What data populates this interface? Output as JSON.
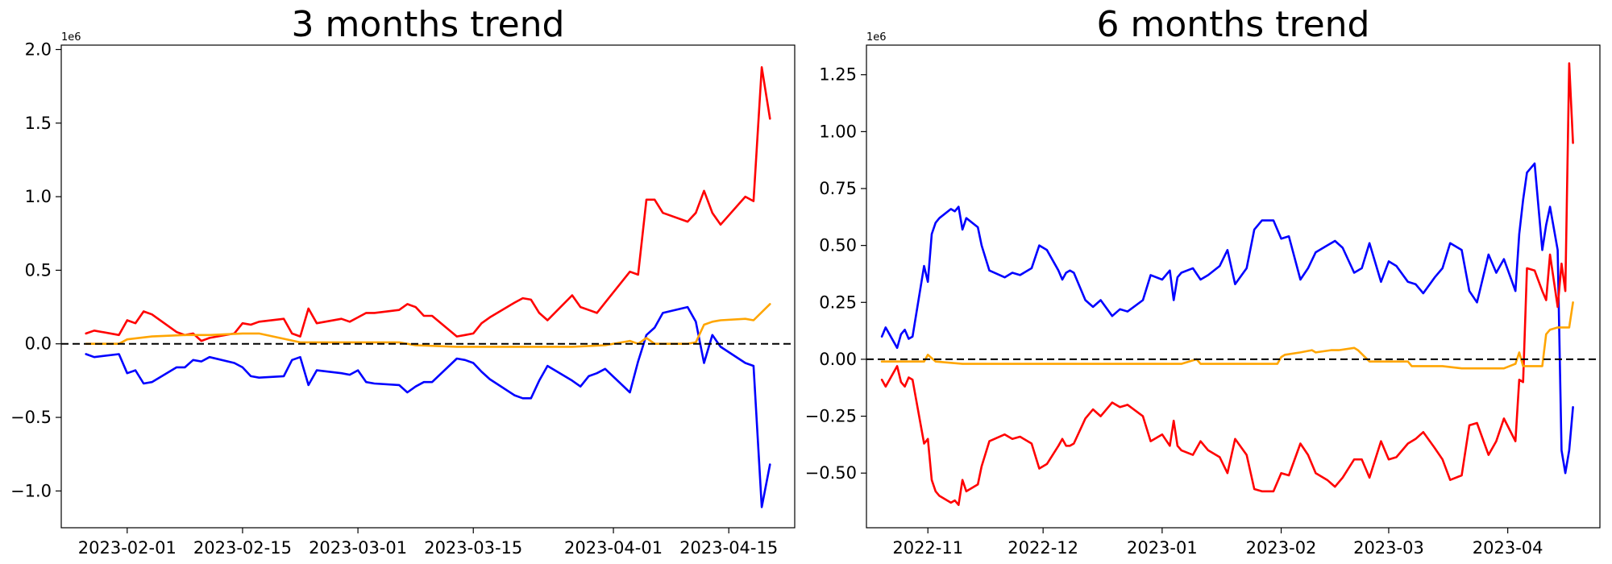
{
  "chart_data": [
    {
      "type": "line",
      "title": "3 months trend",
      "xlabel": "",
      "ylabel": "",
      "y_multiplier": "1e6",
      "xlim": [
        "2023-01-24",
        "2023-04-23"
      ],
      "ylim": [
        -1.25,
        2.03
      ],
      "x_ticks": [
        "2023-02-01",
        "2023-02-15",
        "2023-03-01",
        "2023-03-15",
        "2023-04-01",
        "2023-04-15"
      ],
      "y_ticks": [
        "−1.0",
        "−0.5",
        "0.0",
        "0.5",
        "1.0",
        "1.5",
        "2.0"
      ],
      "y_tick_values": [
        -1.0,
        -0.5,
        0.0,
        0.5,
        1.0,
        1.5,
        2.0
      ],
      "reference_line": {
        "y": 0,
        "style": "dashed",
        "color": "#000000"
      },
      "grid": false,
      "series": [
        {
          "color": "#ff0000",
          "x": [
            "2023-01-27",
            "2023-01-28",
            "2023-01-31",
            "2023-02-01",
            "2023-02-02",
            "2023-02-03",
            "2023-02-04",
            "2023-02-07",
            "2023-02-08",
            "2023-02-09",
            "2023-02-10",
            "2023-02-11",
            "2023-02-14",
            "2023-02-15",
            "2023-02-16",
            "2023-02-17",
            "2023-02-20",
            "2023-02-21",
            "2023-02-22",
            "2023-02-23",
            "2023-02-24",
            "2023-02-27",
            "2023-02-28",
            "2023-03-01",
            "2023-03-02",
            "2023-03-03",
            "2023-03-06",
            "2023-03-07",
            "2023-03-08",
            "2023-03-09",
            "2023-03-10",
            "2023-03-13",
            "2023-03-14",
            "2023-03-15",
            "2023-03-16",
            "2023-03-17",
            "2023-03-20",
            "2023-03-21",
            "2023-03-22",
            "2023-03-23",
            "2023-03-24",
            "2023-03-27",
            "2023-03-28",
            "2023-03-29",
            "2023-03-30",
            "2023-03-31",
            "2023-04-03",
            "2023-04-04",
            "2023-04-05",
            "2023-04-06",
            "2023-04-07",
            "2023-04-10",
            "2023-04-11",
            "2023-04-12",
            "2023-04-13",
            "2023-04-14",
            "2023-04-17",
            "2023-04-18",
            "2023-04-19",
            "2023-04-20"
          ],
          "values": [
            0.07,
            0.09,
            0.06,
            0.16,
            0.14,
            0.22,
            0.2,
            0.08,
            0.06,
            0.07,
            0.02,
            0.04,
            0.07,
            0.14,
            0.13,
            0.15,
            0.17,
            0.07,
            0.05,
            0.24,
            0.14,
            0.17,
            0.15,
            0.18,
            0.21,
            0.21,
            0.23,
            0.27,
            0.25,
            0.19,
            0.19,
            0.05,
            0.06,
            0.07,
            0.14,
            0.18,
            0.28,
            0.31,
            0.3,
            0.21,
            0.16,
            0.33,
            0.25,
            0.23,
            0.21,
            0.28,
            0.49,
            0.47,
            0.98,
            0.98,
            0.89,
            0.83,
            0.89,
            1.04,
            0.89,
            0.81,
            1.0,
            0.97,
            1.88,
            1.53
          ]
        },
        {
          "color": "#0000ff",
          "x": [
            "2023-01-27",
            "2023-01-28",
            "2023-01-31",
            "2023-02-01",
            "2023-02-02",
            "2023-02-03",
            "2023-02-04",
            "2023-02-07",
            "2023-02-08",
            "2023-02-09",
            "2023-02-10",
            "2023-02-11",
            "2023-02-14",
            "2023-02-15",
            "2023-02-16",
            "2023-02-17",
            "2023-02-20",
            "2023-02-21",
            "2023-02-22",
            "2023-02-23",
            "2023-02-24",
            "2023-02-27",
            "2023-02-28",
            "2023-03-01",
            "2023-03-02",
            "2023-03-03",
            "2023-03-06",
            "2023-03-07",
            "2023-03-08",
            "2023-03-09",
            "2023-03-10",
            "2023-03-13",
            "2023-03-14",
            "2023-03-15",
            "2023-03-16",
            "2023-03-17",
            "2023-03-20",
            "2023-03-21",
            "2023-03-22",
            "2023-03-23",
            "2023-03-24",
            "2023-03-27",
            "2023-03-28",
            "2023-03-29",
            "2023-03-30",
            "2023-03-31",
            "2023-04-03",
            "2023-04-04",
            "2023-04-05",
            "2023-04-06",
            "2023-04-07",
            "2023-04-10",
            "2023-04-11",
            "2023-04-12",
            "2023-04-13",
            "2023-04-14",
            "2023-04-17",
            "2023-04-18",
            "2023-04-19",
            "2023-04-20"
          ],
          "values": [
            -0.07,
            -0.09,
            -0.07,
            -0.2,
            -0.18,
            -0.27,
            -0.26,
            -0.16,
            -0.16,
            -0.11,
            -0.12,
            -0.09,
            -0.13,
            -0.16,
            -0.22,
            -0.23,
            -0.22,
            -0.11,
            -0.09,
            -0.28,
            -0.18,
            -0.2,
            -0.21,
            -0.18,
            -0.26,
            -0.27,
            -0.28,
            -0.33,
            -0.29,
            -0.26,
            -0.26,
            -0.1,
            -0.11,
            -0.13,
            -0.19,
            -0.24,
            -0.35,
            -0.37,
            -0.37,
            -0.25,
            -0.15,
            -0.25,
            -0.29,
            -0.22,
            -0.2,
            -0.17,
            -0.33,
            -0.12,
            0.06,
            0.11,
            0.21,
            0.25,
            0.15,
            -0.13,
            0.06,
            -0.02,
            -0.13,
            -0.15,
            -1.11,
            -0.82
          ]
        },
        {
          "color": "#ffa500",
          "x": [
            "2023-01-27",
            "2023-01-31",
            "2023-02-01",
            "2023-02-04",
            "2023-02-08",
            "2023-02-11",
            "2023-02-15",
            "2023-02-17",
            "2023-02-22",
            "2023-02-28",
            "2023-03-06",
            "2023-03-08",
            "2023-03-13",
            "2023-03-20",
            "2023-03-27",
            "2023-03-31",
            "2023-04-03",
            "2023-04-04",
            "2023-04-05",
            "2023-04-06",
            "2023-04-10",
            "2023-04-11",
            "2023-04-12",
            "2023-04-13",
            "2023-04-14",
            "2023-04-17",
            "2023-04-18",
            "2023-04-20"
          ],
          "values": [
            0.0,
            0.0,
            0.03,
            0.05,
            0.06,
            0.06,
            0.07,
            0.07,
            0.01,
            0.01,
            0.01,
            -0.01,
            -0.02,
            -0.02,
            -0.02,
            -0.01,
            0.02,
            0.0,
            0.04,
            0.0,
            0.0,
            0.01,
            0.13,
            0.15,
            0.16,
            0.17,
            0.16,
            0.27
          ]
        }
      ]
    },
    {
      "type": "line",
      "title": "6 months trend",
      "xlabel": "",
      "ylabel": "",
      "y_multiplier": "1e6",
      "xlim": [
        "2022-10-16",
        "2023-04-25"
      ],
      "ylim": [
        -0.74,
        1.38
      ],
      "x_ticks": [
        "2022-11",
        "2022-12",
        "2023-01",
        "2023-02",
        "2023-03",
        "2023-04"
      ],
      "x_tick_dates": [
        "2022-11-01",
        "2022-12-01",
        "2023-01-01",
        "2023-02-01",
        "2023-03-01",
        "2023-04-01"
      ],
      "y_ticks": [
        "−0.50",
        "−0.25",
        "0.00",
        "0.25",
        "0.50",
        "0.75",
        "1.00",
        "1.25"
      ],
      "y_tick_values": [
        -0.5,
        -0.25,
        0.0,
        0.25,
        0.5,
        0.75,
        1.0,
        1.25
      ],
      "reference_line": {
        "y": 0,
        "style": "dashed",
        "color": "#000000"
      },
      "grid": false,
      "series": [
        {
          "color": "#0000ff",
          "x": [
            "2022-10-20",
            "2022-10-21",
            "2022-10-24",
            "2022-10-25",
            "2022-10-26",
            "2022-10-27",
            "2022-10-28",
            "2022-10-31",
            "2022-11-01",
            "2022-11-02",
            "2022-11-03",
            "2022-11-04",
            "2022-11-07",
            "2022-11-08",
            "2022-11-09",
            "2022-11-10",
            "2022-11-11",
            "2022-11-14",
            "2022-11-15",
            "2022-11-17",
            "2022-11-21",
            "2022-11-23",
            "2022-11-25",
            "2022-11-28",
            "2022-11-30",
            "2022-12-02",
            "2022-12-05",
            "2022-12-06",
            "2022-12-07",
            "2022-12-08",
            "2022-12-09",
            "2022-12-12",
            "2022-12-14",
            "2022-12-16",
            "2022-12-19",
            "2022-12-21",
            "2022-12-23",
            "2022-12-27",
            "2022-12-29",
            "2023-01-01",
            "2023-01-03",
            "2023-01-04",
            "2023-01-05",
            "2023-01-06",
            "2023-01-09",
            "2023-01-11",
            "2023-01-13",
            "2023-01-16",
            "2023-01-18",
            "2023-01-20",
            "2023-01-23",
            "2023-01-25",
            "2023-01-27",
            "2023-01-30",
            "2023-02-01",
            "2023-02-03",
            "2023-02-06",
            "2023-02-08",
            "2023-02-10",
            "2023-02-13",
            "2023-02-15",
            "2023-02-17",
            "2023-02-20",
            "2023-02-22",
            "2023-02-24",
            "2023-02-27",
            "2023-03-01",
            "2023-03-03",
            "2023-03-06",
            "2023-03-08",
            "2023-03-10",
            "2023-03-13",
            "2023-03-15",
            "2023-03-17",
            "2023-03-20",
            "2023-03-22",
            "2023-03-24",
            "2023-03-27",
            "2023-03-29",
            "2023-03-31",
            "2023-04-03",
            "2023-04-04",
            "2023-04-05",
            "2023-04-06",
            "2023-04-08",
            "2023-04-10",
            "2023-04-11",
            "2023-04-12",
            "2023-04-14",
            "2023-04-15",
            "2023-04-16",
            "2023-04-17",
            "2023-04-18"
          ],
          "values": [
            0.1,
            0.14,
            0.05,
            0.11,
            0.13,
            0.09,
            0.1,
            0.41,
            0.34,
            0.55,
            0.6,
            0.62,
            0.66,
            0.65,
            0.67,
            0.57,
            0.62,
            0.58,
            0.5,
            0.39,
            0.36,
            0.38,
            0.37,
            0.4,
            0.5,
            0.48,
            0.39,
            0.35,
            0.38,
            0.39,
            0.38,
            0.26,
            0.23,
            0.26,
            0.19,
            0.22,
            0.21,
            0.26,
            0.37,
            0.35,
            0.39,
            0.26,
            0.36,
            0.38,
            0.4,
            0.35,
            0.37,
            0.41,
            0.48,
            0.33,
            0.4,
            0.57,
            0.61,
            0.61,
            0.53,
            0.54,
            0.35,
            0.4,
            0.47,
            0.5,
            0.52,
            0.49,
            0.38,
            0.4,
            0.51,
            0.34,
            0.43,
            0.41,
            0.34,
            0.33,
            0.29,
            0.36,
            0.4,
            0.51,
            0.48,
            0.3,
            0.25,
            0.46,
            0.38,
            0.44,
            0.3,
            0.55,
            0.7,
            0.82,
            0.86,
            0.48,
            0.59,
            0.67,
            0.48,
            -0.4,
            -0.5,
            -0.4,
            -0.21
          ]
        },
        {
          "color": "#ff0000",
          "x": [
            "2022-10-20",
            "2022-10-21",
            "2022-10-24",
            "2022-10-25",
            "2022-10-26",
            "2022-10-27",
            "2022-10-28",
            "2022-10-31",
            "2022-11-01",
            "2022-11-02",
            "2022-11-03",
            "2022-11-04",
            "2022-11-07",
            "2022-11-08",
            "2022-11-09",
            "2022-11-10",
            "2022-11-11",
            "2022-11-14",
            "2022-11-15",
            "2022-11-17",
            "2022-11-21",
            "2022-11-23",
            "2022-11-25",
            "2022-11-28",
            "2022-11-30",
            "2022-12-02",
            "2022-12-05",
            "2022-12-06",
            "2022-12-07",
            "2022-12-08",
            "2022-12-09",
            "2022-12-12",
            "2022-12-14",
            "2022-12-16",
            "2022-12-19",
            "2022-12-21",
            "2022-12-23",
            "2022-12-27",
            "2022-12-29",
            "2023-01-01",
            "2023-01-03",
            "2023-01-04",
            "2023-01-05",
            "2023-01-06",
            "2023-01-09",
            "2023-01-11",
            "2023-01-13",
            "2023-01-16",
            "2023-01-18",
            "2023-01-20",
            "2023-01-23",
            "2023-01-25",
            "2023-01-27",
            "2023-01-30",
            "2023-02-01",
            "2023-02-03",
            "2023-02-06",
            "2023-02-08",
            "2023-02-10",
            "2023-02-13",
            "2023-02-15",
            "2023-02-17",
            "2023-02-20",
            "2023-02-22",
            "2023-02-24",
            "2023-02-27",
            "2023-03-01",
            "2023-03-03",
            "2023-03-06",
            "2023-03-08",
            "2023-03-10",
            "2023-03-13",
            "2023-03-15",
            "2023-03-17",
            "2023-03-20",
            "2023-03-22",
            "2023-03-24",
            "2023-03-27",
            "2023-03-29",
            "2023-03-31",
            "2023-04-03",
            "2023-04-04",
            "2023-04-05",
            "2023-04-06",
            "2023-04-08",
            "2023-04-10",
            "2023-04-11",
            "2023-04-12",
            "2023-04-14",
            "2023-04-15",
            "2023-04-16",
            "2023-04-17",
            "2023-04-18"
          ],
          "values": [
            -0.09,
            -0.12,
            -0.03,
            -0.1,
            -0.12,
            -0.08,
            -0.09,
            -0.37,
            -0.35,
            -0.53,
            -0.58,
            -0.6,
            -0.63,
            -0.62,
            -0.64,
            -0.53,
            -0.58,
            -0.55,
            -0.47,
            -0.36,
            -0.33,
            -0.35,
            -0.34,
            -0.37,
            -0.48,
            -0.46,
            -0.38,
            -0.35,
            -0.38,
            -0.38,
            -0.37,
            -0.26,
            -0.22,
            -0.25,
            -0.19,
            -0.21,
            -0.2,
            -0.25,
            -0.36,
            -0.33,
            -0.38,
            -0.27,
            -0.38,
            -0.4,
            -0.42,
            -0.36,
            -0.4,
            -0.43,
            -0.5,
            -0.35,
            -0.42,
            -0.57,
            -0.58,
            -0.58,
            -0.5,
            -0.51,
            -0.37,
            -0.42,
            -0.5,
            -0.53,
            -0.56,
            -0.52,
            -0.44,
            -0.44,
            -0.52,
            -0.36,
            -0.44,
            -0.43,
            -0.37,
            -0.35,
            -0.32,
            -0.39,
            -0.44,
            -0.53,
            -0.51,
            -0.29,
            -0.28,
            -0.42,
            -0.36,
            -0.26,
            -0.36,
            -0.09,
            -0.1,
            0.4,
            0.39,
            0.3,
            0.26,
            0.46,
            0.23,
            0.42,
            0.3,
            1.3,
            0.95
          ]
        },
        {
          "color": "#ffa500",
          "x": [
            "2022-10-20",
            "2022-10-31",
            "2022-11-01",
            "2022-11-03",
            "2022-11-10",
            "2022-11-20",
            "2022-12-01",
            "2022-12-15",
            "2023-01-01",
            "2023-01-06",
            "2023-01-10",
            "2023-01-11",
            "2023-01-20",
            "2023-01-31",
            "2023-02-01",
            "2023-02-02",
            "2023-02-06",
            "2023-02-09",
            "2023-02-10",
            "2023-02-14",
            "2023-02-16",
            "2023-02-20",
            "2023-02-21",
            "2023-02-24",
            "2023-03-01",
            "2023-03-06",
            "2023-03-07",
            "2023-03-15",
            "2023-03-20",
            "2023-03-31",
            "2023-04-03",
            "2023-04-04",
            "2023-04-05",
            "2023-04-06",
            "2023-04-10",
            "2023-04-11",
            "2023-04-12",
            "2023-04-14",
            "2023-04-17",
            "2023-04-18"
          ],
          "values": [
            -0.01,
            -0.01,
            0.02,
            -0.01,
            -0.02,
            -0.02,
            -0.02,
            -0.02,
            -0.02,
            -0.02,
            0.0,
            -0.02,
            -0.02,
            -0.02,
            0.01,
            0.02,
            0.03,
            0.04,
            0.03,
            0.04,
            0.04,
            0.05,
            0.04,
            -0.01,
            -0.01,
            -0.01,
            -0.03,
            -0.03,
            -0.04,
            -0.04,
            -0.02,
            0.03,
            -0.03,
            -0.03,
            -0.03,
            0.11,
            0.13,
            0.14,
            0.14,
            0.25
          ]
        }
      ]
    }
  ]
}
